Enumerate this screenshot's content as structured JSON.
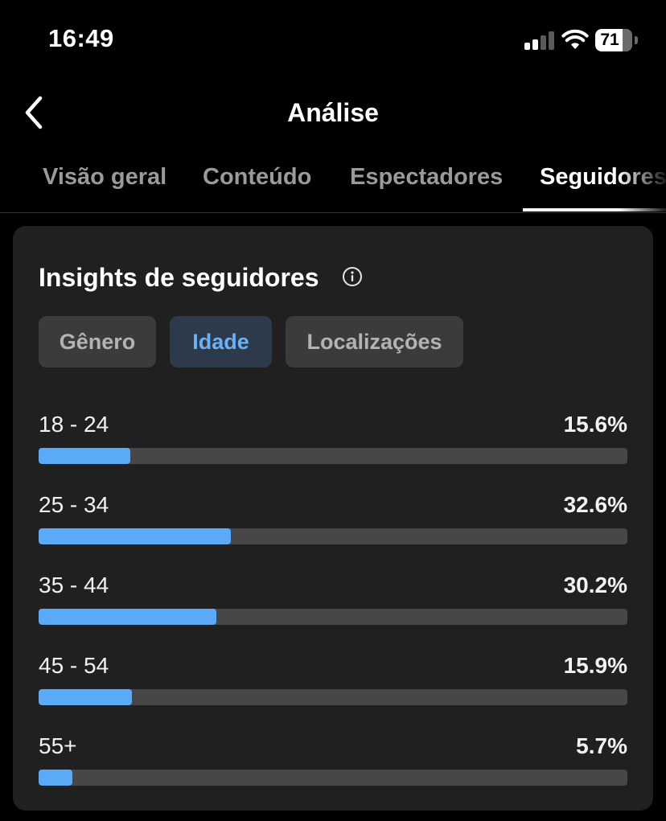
{
  "status_bar": {
    "time": "16:49",
    "battery": "71",
    "signal_bars": 4,
    "signal_active_bars": 2
  },
  "header": {
    "title": "Análise",
    "back_icon": "chevron-left-icon"
  },
  "tabs": [
    {
      "label": "Visão geral",
      "active": false
    },
    {
      "label": "Conteúdo",
      "active": false
    },
    {
      "label": "Espectadores",
      "active": false
    },
    {
      "label": "Seguidores",
      "active": true
    }
  ],
  "card": {
    "title": "Insights de seguidores",
    "info_icon": "info-icon",
    "segments": [
      {
        "label": "Gênero",
        "active": false
      },
      {
        "label": "Idade",
        "active": true
      },
      {
        "label": "Localizações",
        "active": false
      }
    ],
    "rows": [
      {
        "label": "18 - 24",
        "value": "15.6%",
        "percent": 15.6
      },
      {
        "label": "25 - 34",
        "value": "32.6%",
        "percent": 32.6
      },
      {
        "label": "35 - 44",
        "value": "30.2%",
        "percent": 30.2
      },
      {
        "label": "45 - 54",
        "value": "15.9%",
        "percent": 15.9
      },
      {
        "label": "55+",
        "value": "5.7%",
        "percent": 5.7
      }
    ]
  },
  "colors": {
    "accent": "#5aaaf8",
    "track": "#474747",
    "card_bg": "#202020",
    "active_segment_bg": "#2c3a4b",
    "active_segment_text": "#6cb0f5"
  }
}
